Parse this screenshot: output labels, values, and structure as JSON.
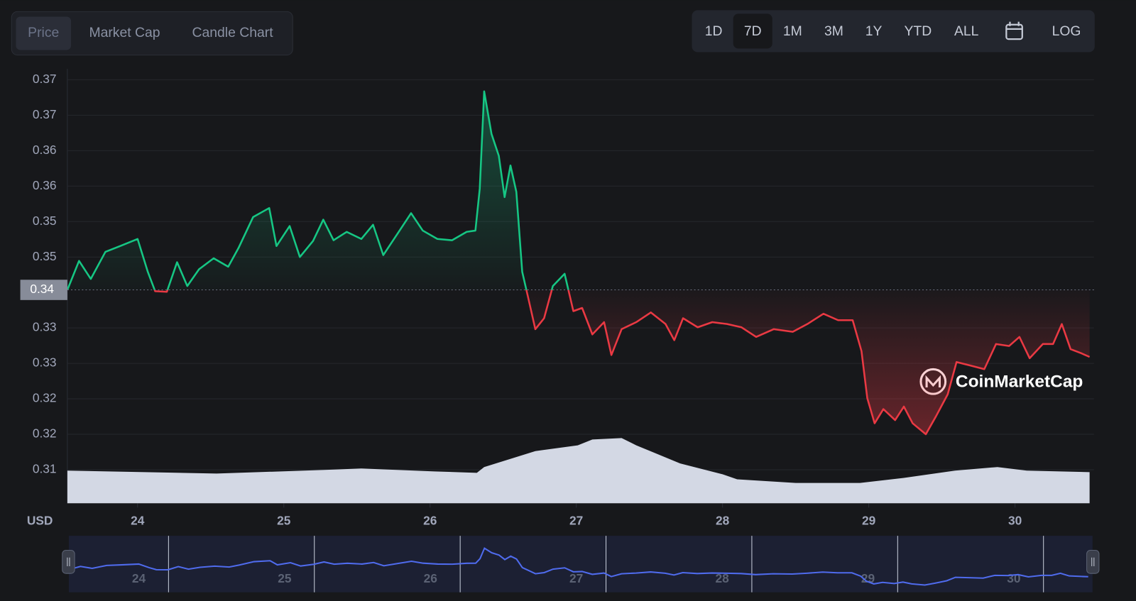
{
  "tabs": {
    "items": [
      "Price",
      "Market Cap",
      "Candle Chart"
    ],
    "selected": 0
  },
  "ranges": {
    "items": [
      "1D",
      "7D",
      "1M",
      "3M",
      "1Y",
      "YTD",
      "ALL"
    ],
    "selected": 1
  },
  "log_button": "LOG",
  "watermark": "CoinMarketCap",
  "chart_data": {
    "type": "line",
    "x": [
      23.52,
      23.6,
      23.68,
      23.78,
      23.88,
      24.0,
      24.07,
      24.12,
      24.2,
      24.27,
      24.34,
      24.42,
      24.52,
      24.62,
      24.69,
      24.79,
      24.9,
      24.95,
      25.04,
      25.11,
      25.2,
      25.27,
      25.34,
      25.43,
      25.53,
      25.61,
      25.68,
      25.78,
      25.87,
      25.95,
      26.05,
      26.15,
      26.25,
      26.31,
      26.34,
      26.37,
      26.42,
      26.47,
      26.51,
      26.55,
      26.59,
      26.63,
      26.67,
      26.72,
      26.78,
      26.84,
      26.92,
      26.98,
      27.04,
      27.11,
      27.19,
      27.24,
      27.31,
      27.41,
      27.51,
      27.61,
      27.67,
      27.73,
      27.83,
      27.93,
      28.03,
      28.13,
      28.23,
      28.35,
      28.48,
      28.58,
      28.69,
      28.79,
      28.89,
      28.95,
      28.99,
      29.04,
      29.1,
      29.18,
      29.24,
      29.3,
      29.39,
      29.46,
      29.54,
      29.6,
      29.69,
      29.79,
      29.87,
      29.96,
      30.03,
      30.1,
      30.19,
      30.26,
      30.32,
      30.38,
      30.45,
      30.51
    ],
    "values": [
      0.3404,
      0.3449,
      0.3421,
      0.3463,
      0.3472,
      0.3483,
      0.3432,
      0.3402,
      0.3401,
      0.3447,
      0.341,
      0.3436,
      0.3453,
      0.344,
      0.3469,
      0.3517,
      0.3531,
      0.3472,
      0.3503,
      0.3455,
      0.348,
      0.3513,
      0.3481,
      0.3494,
      0.3483,
      0.3505,
      0.3458,
      0.3492,
      0.3523,
      0.3496,
      0.3483,
      0.3481,
      0.3494,
      0.3496,
      0.3561,
      0.3712,
      0.3646,
      0.3612,
      0.3548,
      0.3597,
      0.3556,
      0.3432,
      0.3393,
      0.3343,
      0.336,
      0.341,
      0.3429,
      0.3371,
      0.3376,
      0.3335,
      0.3354,
      0.3303,
      0.3343,
      0.3354,
      0.3369,
      0.3351,
      0.3326,
      0.336,
      0.3346,
      0.3354,
      0.3351,
      0.3346,
      0.3331,
      0.3343,
      0.3339,
      0.3351,
      0.3367,
      0.3357,
      0.3357,
      0.3309,
      0.3236,
      0.3197,
      0.3219,
      0.3202,
      0.3223,
      0.3197,
      0.318,
      0.3208,
      0.3242,
      0.3292,
      0.3287,
      0.3281,
      0.332,
      0.3317,
      0.3331,
      0.3298,
      0.332,
      0.332,
      0.3351,
      0.3312,
      0.3306,
      0.33
    ],
    "reference": {
      "value": 0.3404,
      "label": "0.34"
    },
    "color_up": "#16c784",
    "color_down": "#ea3943",
    "xlim": [
      23.52,
      30.54
    ],
    "ylim": [
      0.3073,
      0.3747
    ],
    "xticks": [
      24,
      25,
      26,
      27,
      28,
      29,
      30
    ],
    "yticks": [
      {
        "value": 0.3125,
        "label": "0.31"
      },
      {
        "value": 0.318,
        "label": "0.32"
      },
      {
        "value": 0.3235,
        "label": "0.32"
      },
      {
        "value": 0.329,
        "label": "0.33"
      },
      {
        "value": 0.3345,
        "label": "0.33"
      },
      {
        "value": 0.3455,
        "label": "0.35"
      },
      {
        "value": 0.351,
        "label": "0.35"
      },
      {
        "value": 0.3565,
        "label": "0.36"
      },
      {
        "value": 0.362,
        "label": "0.36"
      },
      {
        "value": 0.3675,
        "label": "0.37"
      },
      {
        "value": 0.373,
        "label": "0.37"
      }
    ],
    "unit_label": "USD",
    "grid": true,
    "volume": {
      "x": [
        23.52,
        24.05,
        24.54,
        25.28,
        25.53,
        26.03,
        26.32,
        26.37,
        26.72,
        27.01,
        27.11,
        27.31,
        27.41,
        27.71,
        28.0,
        28.1,
        28.5,
        28.94,
        29.24,
        29.59,
        29.88,
        30.08,
        30.51
      ],
      "values": [
        45,
        43,
        41,
        46,
        48,
        44,
        42,
        50,
        72,
        80,
        88,
        90,
        80,
        55,
        40,
        33,
        28,
        28,
        35,
        45,
        50,
        45,
        43
      ],
      "ylim": [
        0,
        600
      ],
      "color": "#d3d8e4"
    },
    "navigator_color": "#4f6bed"
  }
}
